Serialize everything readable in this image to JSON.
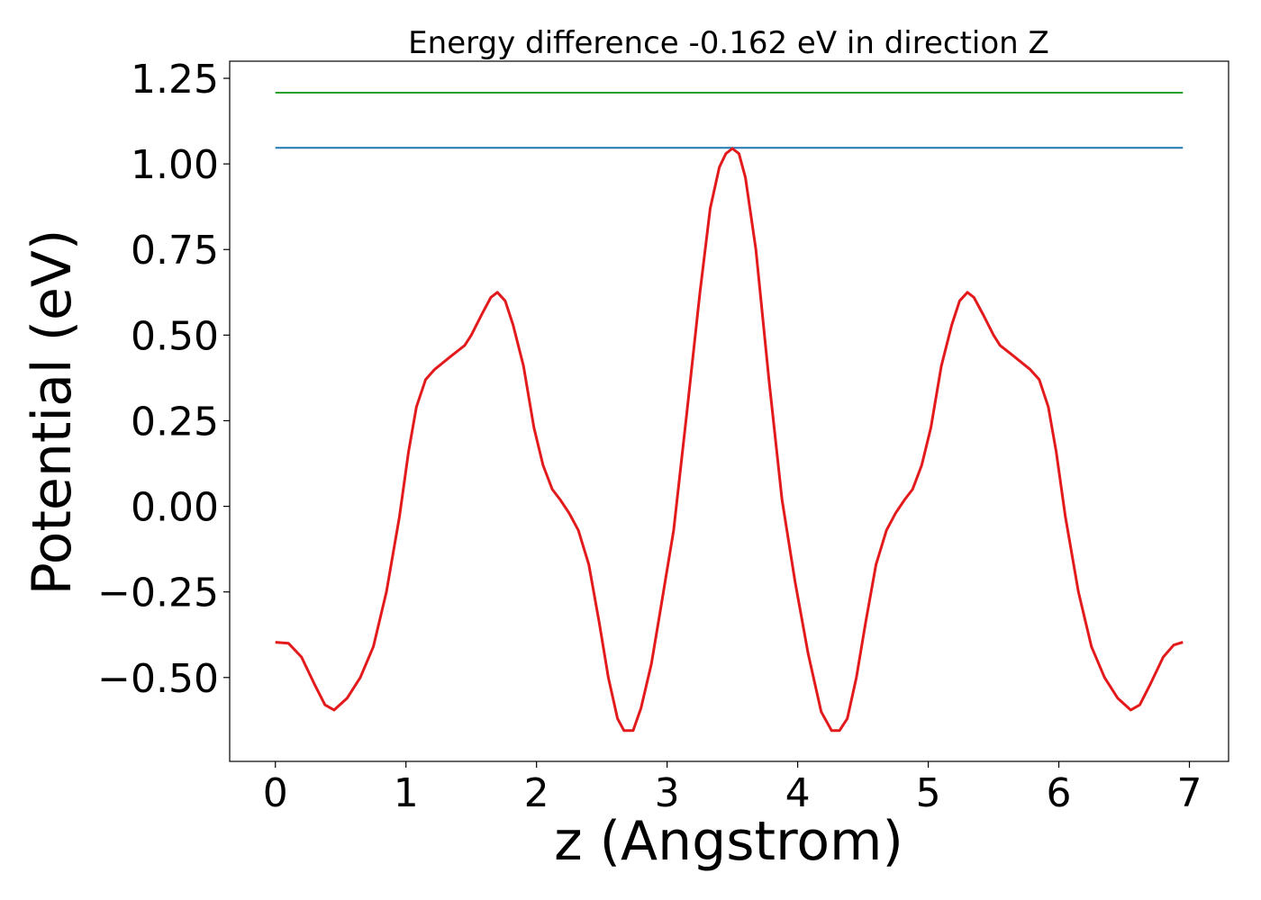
{
  "chart_data": {
    "type": "line",
    "title": "Energy difference -0.162 eV in direction Z",
    "xlabel": "z (Angstrom)",
    "ylabel": "Potential (eV)",
    "xlim": [
      -0.35,
      7.3
    ],
    "ylim": [
      -0.745,
      1.3
    ],
    "x_ticks": [
      {
        "value": 0,
        "label": "0"
      },
      {
        "value": 1,
        "label": "1"
      },
      {
        "value": 2,
        "label": "2"
      },
      {
        "value": 3,
        "label": "3"
      },
      {
        "value": 4,
        "label": "4"
      },
      {
        "value": 5,
        "label": "5"
      },
      {
        "value": 6,
        "label": "6"
      },
      {
        "value": 7,
        "label": "7"
      }
    ],
    "y_ticks": [
      {
        "value": -0.5,
        "label": "−0.50"
      },
      {
        "value": -0.25,
        "label": "−0.25"
      },
      {
        "value": 0,
        "label": "0.00"
      },
      {
        "value": 0.25,
        "label": "0.25"
      },
      {
        "value": 0.5,
        "label": "0.50"
      },
      {
        "value": 0.75,
        "label": "0.75"
      },
      {
        "value": 1.0,
        "label": "1.00"
      },
      {
        "value": 1.25,
        "label": "1.25"
      }
    ],
    "grid": false,
    "series": [
      {
        "color": "#2ca02c",
        "line_width": 2,
        "points": [
          [
            0,
            1.208
          ],
          [
            6.95,
            1.208
          ]
        ]
      },
      {
        "color": "#1f77b4",
        "line_width": 2,
        "points": [
          [
            0,
            1.047
          ],
          [
            6.95,
            1.047
          ]
        ]
      },
      {
        "color": "#e31a1c",
        "line_width": 3,
        "points": [
          [
            0.0,
            -0.397
          ],
          [
            0.1,
            -0.4
          ],
          [
            0.2,
            -0.44
          ],
          [
            0.3,
            -0.52
          ],
          [
            0.38,
            -0.58
          ],
          [
            0.45,
            -0.595
          ],
          [
            0.55,
            -0.56
          ],
          [
            0.65,
            -0.5
          ],
          [
            0.75,
            -0.41
          ],
          [
            0.85,
            -0.25
          ],
          [
            0.95,
            -0.03
          ],
          [
            1.02,
            0.16
          ],
          [
            1.08,
            0.29
          ],
          [
            1.15,
            0.37
          ],
          [
            1.22,
            0.4
          ],
          [
            1.35,
            0.44
          ],
          [
            1.45,
            0.47
          ],
          [
            1.5,
            0.5
          ],
          [
            1.58,
            0.56
          ],
          [
            1.65,
            0.61
          ],
          [
            1.7,
            0.625
          ],
          [
            1.76,
            0.6
          ],
          [
            1.82,
            0.53
          ],
          [
            1.9,
            0.41
          ],
          [
            1.98,
            0.23
          ],
          [
            2.05,
            0.12
          ],
          [
            2.12,
            0.05
          ],
          [
            2.18,
            0.02
          ],
          [
            2.25,
            -0.02
          ],
          [
            2.32,
            -0.07
          ],
          [
            2.4,
            -0.17
          ],
          [
            2.48,
            -0.34
          ],
          [
            2.55,
            -0.5
          ],
          [
            2.62,
            -0.62
          ],
          [
            2.67,
            -0.655
          ],
          [
            2.74,
            -0.655
          ],
          [
            2.8,
            -0.59
          ],
          [
            2.88,
            -0.46
          ],
          [
            2.95,
            -0.3
          ],
          [
            3.05,
            -0.07
          ],
          [
            3.15,
            0.27
          ],
          [
            3.25,
            0.62
          ],
          [
            3.33,
            0.87
          ],
          [
            3.4,
            0.99
          ],
          [
            3.45,
            1.03
          ],
          [
            3.5,
            1.045
          ],
          [
            3.55,
            1.03
          ],
          [
            3.6,
            0.96
          ],
          [
            3.68,
            0.75
          ],
          [
            3.78,
            0.37
          ],
          [
            3.88,
            0.02
          ],
          [
            3.98,
            -0.22
          ],
          [
            4.08,
            -0.43
          ],
          [
            4.18,
            -0.6
          ],
          [
            4.26,
            -0.655
          ],
          [
            4.32,
            -0.655
          ],
          [
            4.38,
            -0.62
          ],
          [
            4.45,
            -0.5
          ],
          [
            4.52,
            -0.34
          ],
          [
            4.6,
            -0.17
          ],
          [
            4.68,
            -0.07
          ],
          [
            4.75,
            -0.02
          ],
          [
            4.82,
            0.02
          ],
          [
            4.88,
            0.05
          ],
          [
            4.95,
            0.12
          ],
          [
            5.02,
            0.23
          ],
          [
            5.1,
            0.41
          ],
          [
            5.18,
            0.53
          ],
          [
            5.24,
            0.6
          ],
          [
            5.3,
            0.625
          ],
          [
            5.35,
            0.61
          ],
          [
            5.42,
            0.56
          ],
          [
            5.5,
            0.5
          ],
          [
            5.55,
            0.47
          ],
          [
            5.65,
            0.44
          ],
          [
            5.78,
            0.4
          ],
          [
            5.85,
            0.37
          ],
          [
            5.92,
            0.29
          ],
          [
            5.98,
            0.16
          ],
          [
            6.05,
            -0.03
          ],
          [
            6.15,
            -0.25
          ],
          [
            6.25,
            -0.41
          ],
          [
            6.35,
            -0.5
          ],
          [
            6.45,
            -0.56
          ],
          [
            6.55,
            -0.595
          ],
          [
            6.62,
            -0.58
          ],
          [
            6.7,
            -0.52
          ],
          [
            6.8,
            -0.44
          ],
          [
            6.88,
            -0.405
          ],
          [
            6.95,
            -0.397
          ]
        ]
      }
    ]
  }
}
